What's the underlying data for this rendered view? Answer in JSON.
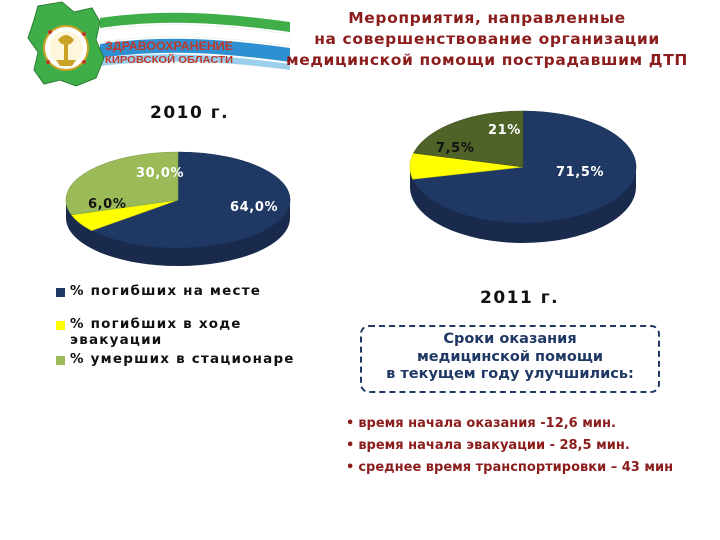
{
  "header": {
    "logo_line1": "ЗДРАВООХРАНЕНИЕ",
    "logo_line2": "КИРОВСКОЙ ОБЛАСТИ",
    "title_line1": "Мероприятия, направленные",
    "title_line2": "на совершенствование организации",
    "title_line3": "медицинской помощи  пострадавшим ДТП",
    "colors": {
      "title": "#8b1d1d",
      "flag_green": "#3fae49",
      "flag_blue": "#2e8fd1",
      "logo_red": "#c0392b"
    }
  },
  "chart_data": [
    {
      "type": "pie",
      "title": "2010 г.",
      "series": [
        {
          "values": [
            64.0,
            6.0,
            30.0
          ]
        }
      ],
      "categories": [
        "% погибших на месте",
        "% погибших в ходе эвакуации",
        "% умерших в стационаре"
      ],
      "labels": [
        "64,0%",
        "6,0%",
        "30,0%"
      ],
      "colors": [
        "#1f3864",
        "#ffff00",
        "#9bbb59"
      ],
      "legend": "bottom-left"
    },
    {
      "type": "pie",
      "title": "2011 г.",
      "series": [
        {
          "values": [
            71.5,
            7.5,
            21
          ]
        }
      ],
      "categories": [
        "% погибших на месте",
        "% погибших в ходе эвакуации",
        "% умерших в стационаре"
      ],
      "labels": [
        "71,5%",
        "7,5%",
        "21%"
      ],
      "colors": [
        "#1f3864",
        "#ffff00",
        "#4f6228"
      ]
    }
  ],
  "legend": {
    "items": [
      {
        "label": "% погибших на месте",
        "color": "#1f3864"
      },
      {
        "label": "% погибших в ходе эвакуации",
        "color": "#ffff00"
      },
      {
        "label": "% умерших в стационаре",
        "color": "#9bbb59"
      }
    ]
  },
  "info_box": {
    "line1": "Сроки оказания",
    "line2": "медицинской помощи",
    "line3": "в текущем году улучшились:"
  },
  "bullets": [
    "время начала оказания -12,6 мин.",
    "время начала эвакуации - 28,5 мин.",
    "среднее время транспортировки – 43 мин"
  ]
}
